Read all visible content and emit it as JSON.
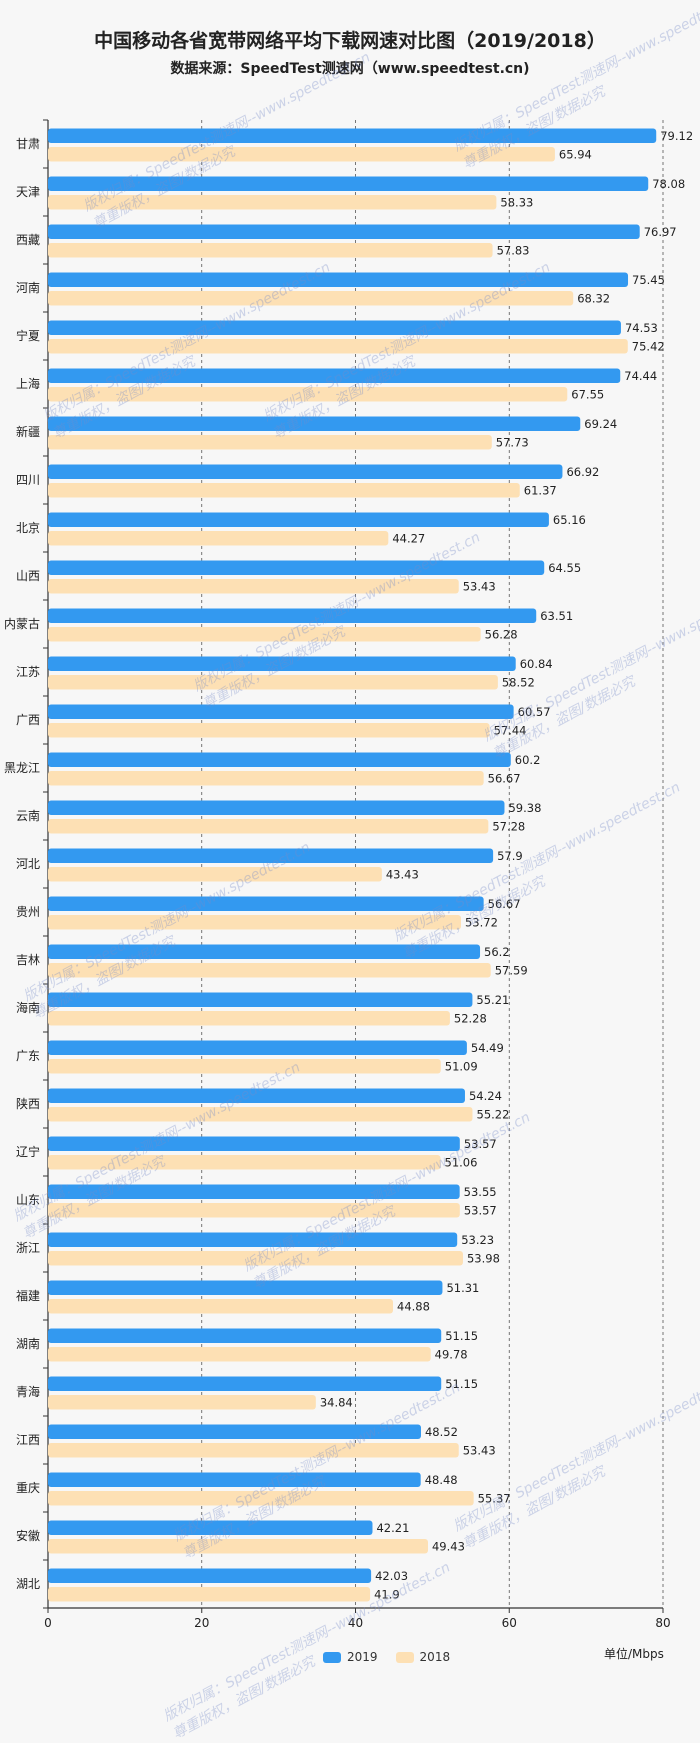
{
  "title": "中国移动各省宽带网络平均下载网速对比图（2019/2018）",
  "subtitle": "数据来源：SpeedTest测速网（www.speedtest.cn)",
  "unit_label": "单位/Mbps",
  "watermark_line1": "版权归属：SpeedTest测速网--www.speedtest.cn",
  "watermark_line2": "尊重版权，盗图/数据必究",
  "colors": {
    "series_2019": "#3399f0",
    "series_2018": "#fde0b4",
    "grid": "#555555",
    "axis": "#333333"
  },
  "chart_data": {
    "type": "bar",
    "orientation": "horizontal",
    "title": "中国移动各省宽带网络平均下载网速对比图（2019/2018）",
    "xlabel": "单位/Mbps",
    "xlim": [
      0,
      80
    ],
    "xticks": [
      0,
      20,
      40,
      60,
      80
    ],
    "grid": "vertical dashed",
    "legend_position": "bottom-center",
    "categories": [
      "甘肃",
      "天津",
      "西藏",
      "河南",
      "宁夏",
      "上海",
      "新疆",
      "四川",
      "北京",
      "山西",
      "内蒙古",
      "江苏",
      "广西",
      "黑龙江",
      "云南",
      "河北",
      "贵州",
      "吉林",
      "海南",
      "广东",
      "陕西",
      "辽宁",
      "山东",
      "浙江",
      "福建",
      "湖南",
      "青海",
      "江西",
      "重庆",
      "安徽",
      "湖北"
    ],
    "series": [
      {
        "name": "2019",
        "values": [
          79.12,
          78.08,
          76.97,
          75.45,
          74.53,
          74.44,
          69.24,
          66.92,
          65.16,
          64.55,
          63.51,
          60.84,
          60.57,
          60.2,
          59.38,
          57.9,
          56.67,
          56.2,
          55.21,
          54.49,
          54.24,
          53.57,
          53.55,
          53.23,
          51.31,
          51.15,
          51.15,
          48.52,
          48.48,
          42.21,
          42.03
        ]
      },
      {
        "name": "2018",
        "values": [
          65.94,
          58.33,
          57.83,
          68.32,
          75.42,
          67.55,
          57.73,
          61.37,
          44.27,
          53.43,
          56.28,
          58.52,
          57.44,
          56.67,
          57.28,
          43.43,
          53.72,
          57.59,
          52.28,
          51.09,
          55.22,
          51.06,
          53.57,
          53.98,
          44.88,
          49.78,
          34.84,
          53.43,
          55.37,
          49.43,
          41.9
        ]
      }
    ]
  }
}
